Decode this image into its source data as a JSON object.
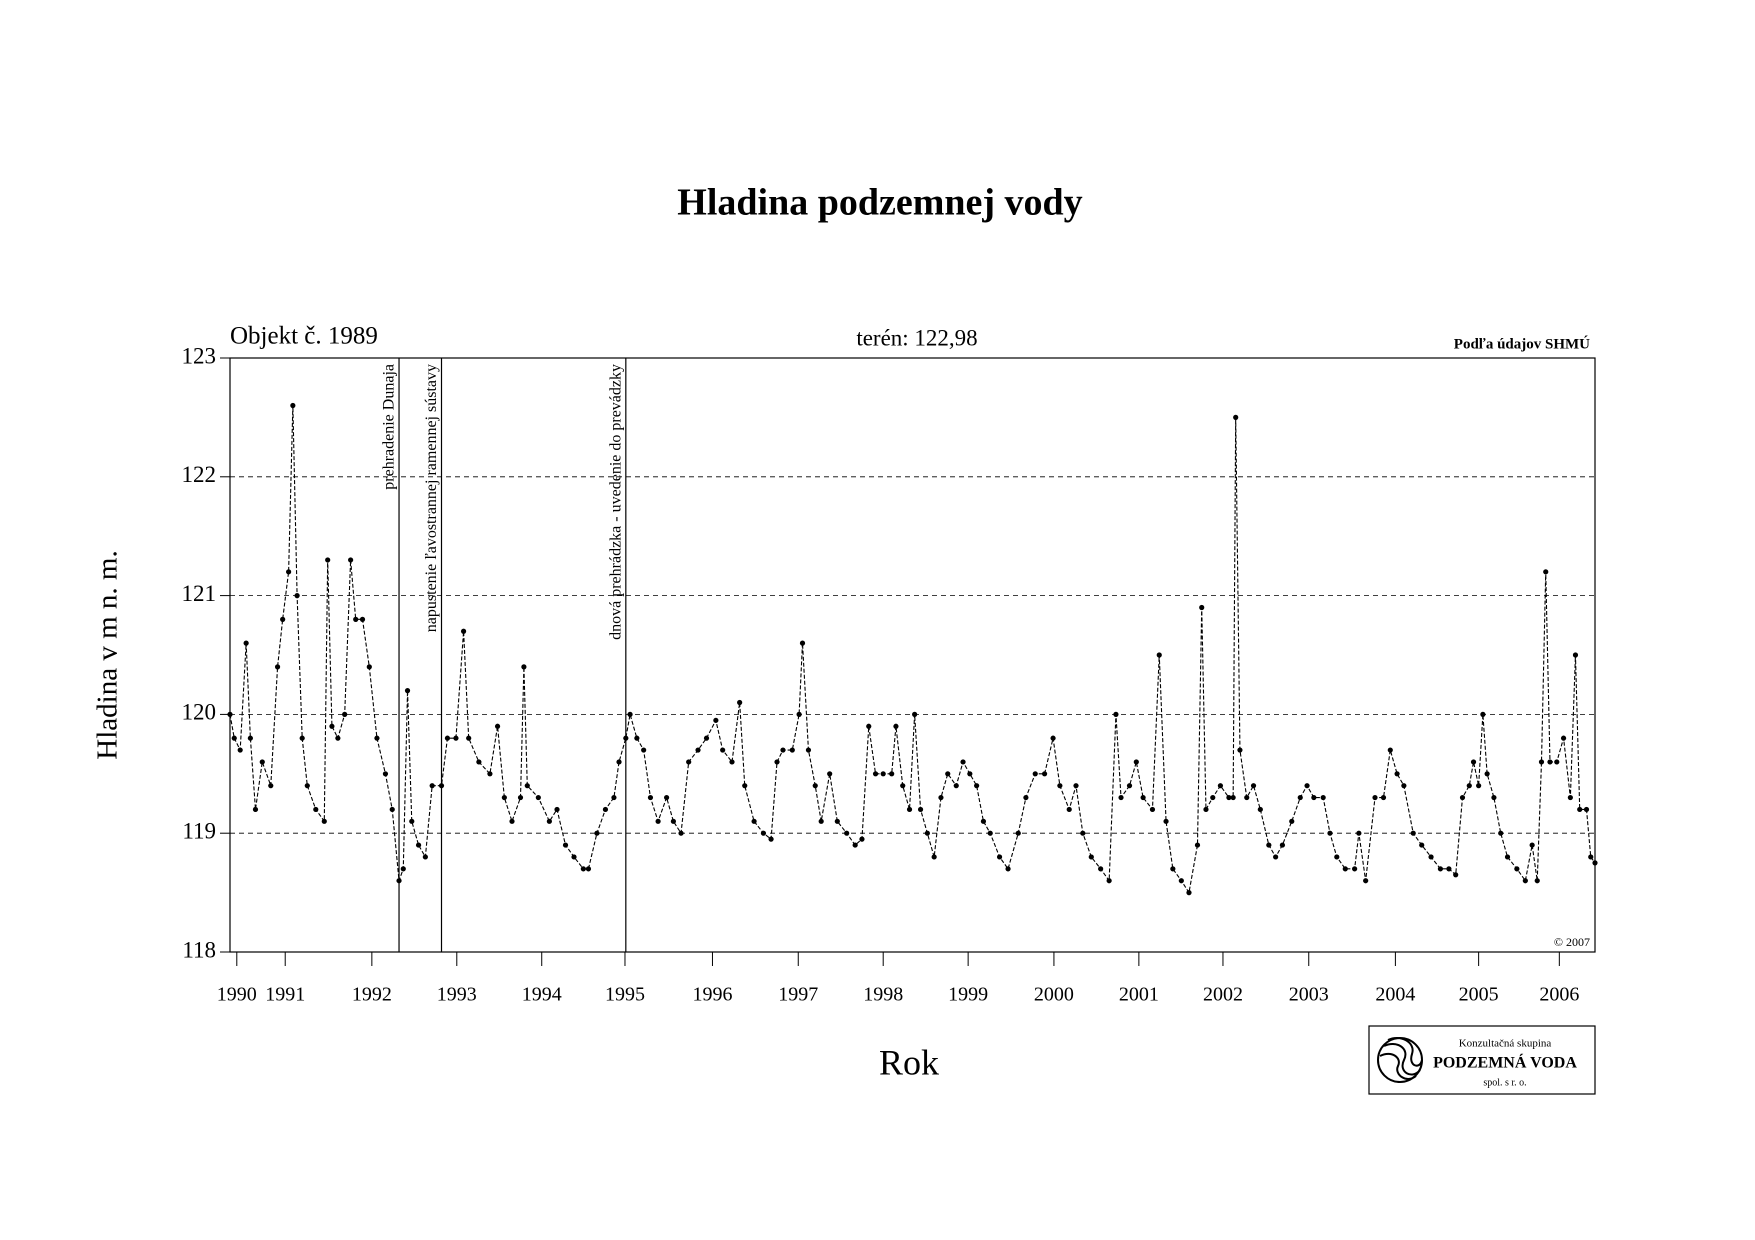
{
  "chart_data": {
    "type": "line",
    "title": "Hladina podzemnej vody",
    "object_label": "Objekt č. 1989",
    "terrain_label": "terén: 122,98",
    "source_label": "Podľa údajov SHMÚ",
    "copyright": "© 2007",
    "x_label": "Rok",
    "y_label": "Hladina v m n. m.",
    "logo": {
      "line1": "Konzultačná skupina",
      "line2": "PODZEMNÁ VODA",
      "line3": "spol. s r. o."
    },
    "color": "#000000",
    "grid": true,
    "xlim": [
      1990.85,
      2006.92
    ],
    "ylim": [
      118,
      123
    ],
    "yticks": [
      118,
      119,
      120,
      121,
      122,
      123
    ],
    "xticks": [
      {
        "value": 1990.93,
        "label": "1990"
      },
      {
        "value": 1991.5,
        "label": "1991"
      },
      {
        "value": 1992.52,
        "label": "1992"
      },
      {
        "value": 1993.52,
        "label": "1993"
      },
      {
        "value": 1994.52,
        "label": "1994"
      },
      {
        "value": 1995.5,
        "label": "1995"
      },
      {
        "value": 1996.53,
        "label": "1996"
      },
      {
        "value": 1997.54,
        "label": "1997"
      },
      {
        "value": 1998.54,
        "label": "1998"
      },
      {
        "value": 1999.54,
        "label": "1999"
      },
      {
        "value": 2000.55,
        "label": "2000"
      },
      {
        "value": 2001.55,
        "label": "2001"
      },
      {
        "value": 2002.54,
        "label": "2002"
      },
      {
        "value": 2003.55,
        "label": "2003"
      },
      {
        "value": 2004.57,
        "label": "2004"
      },
      {
        "value": 2005.55,
        "label": "2005"
      },
      {
        "value": 2006.5,
        "label": "2006"
      }
    ],
    "events": [
      {
        "x": 1992.84,
        "label": "prehradenie Dunaja"
      },
      {
        "x": 1993.34,
        "label": "napustenie ľavostrannej ramennej sústavy"
      },
      {
        "x": 1995.51,
        "label": "dnová prehrádzka - uvedenie do prevádzky"
      }
    ],
    "x": [
      1990.85,
      1990.9,
      1990.97,
      1991.04,
      1991.09,
      1991.15,
      1991.23,
      1991.33,
      1991.41,
      1991.47,
      1991.54,
      1991.59,
      1991.64,
      1991.7,
      1991.76,
      1991.86,
      1991.96,
      1992.0,
      1992.05,
      1992.12,
      1992.2,
      1992.27,
      1992.33,
      1992.41,
      1992.49,
      1992.58,
      1992.68,
      1992.76,
      1992.84,
      1992.89,
      1992.94,
      1992.99,
      1993.07,
      1993.15,
      1993.23,
      1993.34,
      1993.41,
      1993.51,
      1993.6,
      1993.66,
      1993.78,
      1993.91,
      1994.0,
      1994.08,
      1994.17,
      1994.27,
      1994.31,
      1994.35,
      1994.48,
      1994.61,
      1994.7,
      1994.8,
      1994.9,
      1995.01,
      1995.07,
      1995.17,
      1995.27,
      1995.37,
      1995.43,
      1995.51,
      1995.56,
      1995.64,
      1995.72,
      1995.8,
      1995.89,
      1995.99,
      1996.07,
      1996.16,
      1996.25,
      1996.36,
      1996.46,
      1996.57,
      1996.65,
      1996.76,
      1996.85,
      1996.91,
      1997.02,
      1997.13,
      1997.22,
      1997.29,
      1997.36,
      1997.47,
      1997.55,
      1997.59,
      1997.66,
      1997.74,
      1997.81,
      1997.91,
      1998.0,
      1998.11,
      1998.21,
      1998.29,
      1998.37,
      1998.45,
      1998.54,
      1998.64,
      1998.69,
      1998.77,
      1998.85,
      1998.91,
      1998.98,
      1999.06,
      1999.14,
      1999.22,
      1999.3,
      1999.4,
      1999.48,
      1999.56,
      1999.64,
      1999.72,
      1999.8,
      1999.91,
      2000.01,
      2000.13,
      2000.22,
      2000.33,
      2000.44,
      2000.54,
      2000.62,
      2000.73,
      2000.81,
      2000.89,
      2000.99,
      2001.1,
      2001.2,
      2001.28,
      2001.34,
      2001.44,
      2001.52,
      2001.6,
      2001.71,
      2001.79,
      2001.87,
      2001.95,
      2002.05,
      2002.14,
      2002.24,
      2002.29,
      2002.34,
      2002.42,
      2002.51,
      2002.61,
      2002.66,
      2002.69,
      2002.74,
      2002.82,
      2002.9,
      2002.98,
      2003.08,
      2003.16,
      2003.24,
      2003.35,
      2003.45,
      2003.53,
      2003.61,
      2003.72,
      2003.8,
      2003.88,
      2003.98,
      2004.09,
      2004.14,
      2004.22,
      2004.33,
      2004.43,
      2004.51,
      2004.59,
      2004.67,
      2004.78,
      2004.88,
      2004.99,
      2005.1,
      2005.2,
      2005.28,
      2005.36,
      2005.44,
      2005.49,
      2005.55,
      2005.6,
      2005.65,
      2005.73,
      2005.81,
      2005.89,
      2006.0,
      2006.1,
      2006.18,
      2006.24,
      2006.29,
      2006.34,
      2006.39,
      2006.47,
      2006.55,
      2006.63,
      2006.69,
      2006.74,
      2006.82,
      2006.87,
      2006.92
    ],
    "values": [
      120.0,
      119.8,
      119.7,
      120.6,
      119.8,
      119.2,
      119.6,
      119.4,
      120.4,
      120.8,
      121.2,
      122.6,
      121.0,
      119.8,
      119.4,
      119.2,
      119.1,
      121.3,
      119.9,
      119.8,
      120.0,
      121.3,
      120.8,
      120.8,
      120.4,
      119.8,
      119.5,
      119.2,
      118.6,
      118.7,
      120.2,
      119.1,
      118.9,
      118.8,
      119.4,
      119.4,
      119.8,
      119.8,
      120.7,
      119.8,
      119.6,
      119.5,
      119.9,
      119.3,
      119.1,
      119.3,
      120.4,
      119.4,
      119.3,
      119.1,
      119.2,
      118.9,
      118.8,
      118.7,
      118.7,
      119.0,
      119.2,
      119.3,
      119.6,
      119.8,
      120.0,
      119.8,
      119.7,
      119.3,
      119.1,
      119.3,
      119.1,
      119.0,
      119.6,
      119.7,
      119.8,
      119.95,
      119.7,
      119.6,
      120.1,
      119.4,
      119.1,
      119.0,
      118.95,
      119.6,
      119.7,
      119.7,
      120.0,
      120.6,
      119.7,
      119.4,
      119.1,
      119.5,
      119.1,
      119.0,
      118.9,
      118.95,
      119.9,
      119.5,
      119.5,
      119.5,
      119.9,
      119.4,
      119.2,
      120.0,
      119.2,
      119.0,
      118.8,
      119.3,
      119.5,
      119.4,
      119.6,
      119.5,
      119.4,
      119.1,
      119.0,
      118.8,
      118.7,
      119.0,
      119.3,
      119.5,
      119.5,
      119.8,
      119.4,
      119.2,
      119.4,
      119.0,
      118.8,
      118.7,
      118.6,
      120.0,
      119.3,
      119.4,
      119.6,
      119.3,
      119.2,
      120.5,
      119.1,
      118.7,
      118.6,
      118.5,
      118.9,
      120.9,
      119.2,
      119.3,
      119.4,
      119.3,
      119.3,
      122.5,
      119.7,
      119.3,
      119.4,
      119.2,
      118.9,
      118.8,
      118.9,
      119.1,
      119.3,
      119.4,
      119.3,
      119.3,
      119.0,
      118.8,
      118.7,
      118.7,
      119.0,
      118.6,
      119.3,
      119.3,
      119.7,
      119.5,
      119.4,
      119.0,
      118.9,
      118.8,
      118.7,
      118.7,
      118.65,
      119.3,
      119.4,
      119.6,
      119.4,
      120.0,
      119.5,
      119.3,
      119.0,
      118.8,
      118.7,
      118.6,
      118.9,
      118.6,
      119.6,
      121.2,
      119.6,
      119.6,
      119.8,
      119.3,
      120.5,
      119.2,
      119.2,
      118.8,
      118.75
    ]
  }
}
